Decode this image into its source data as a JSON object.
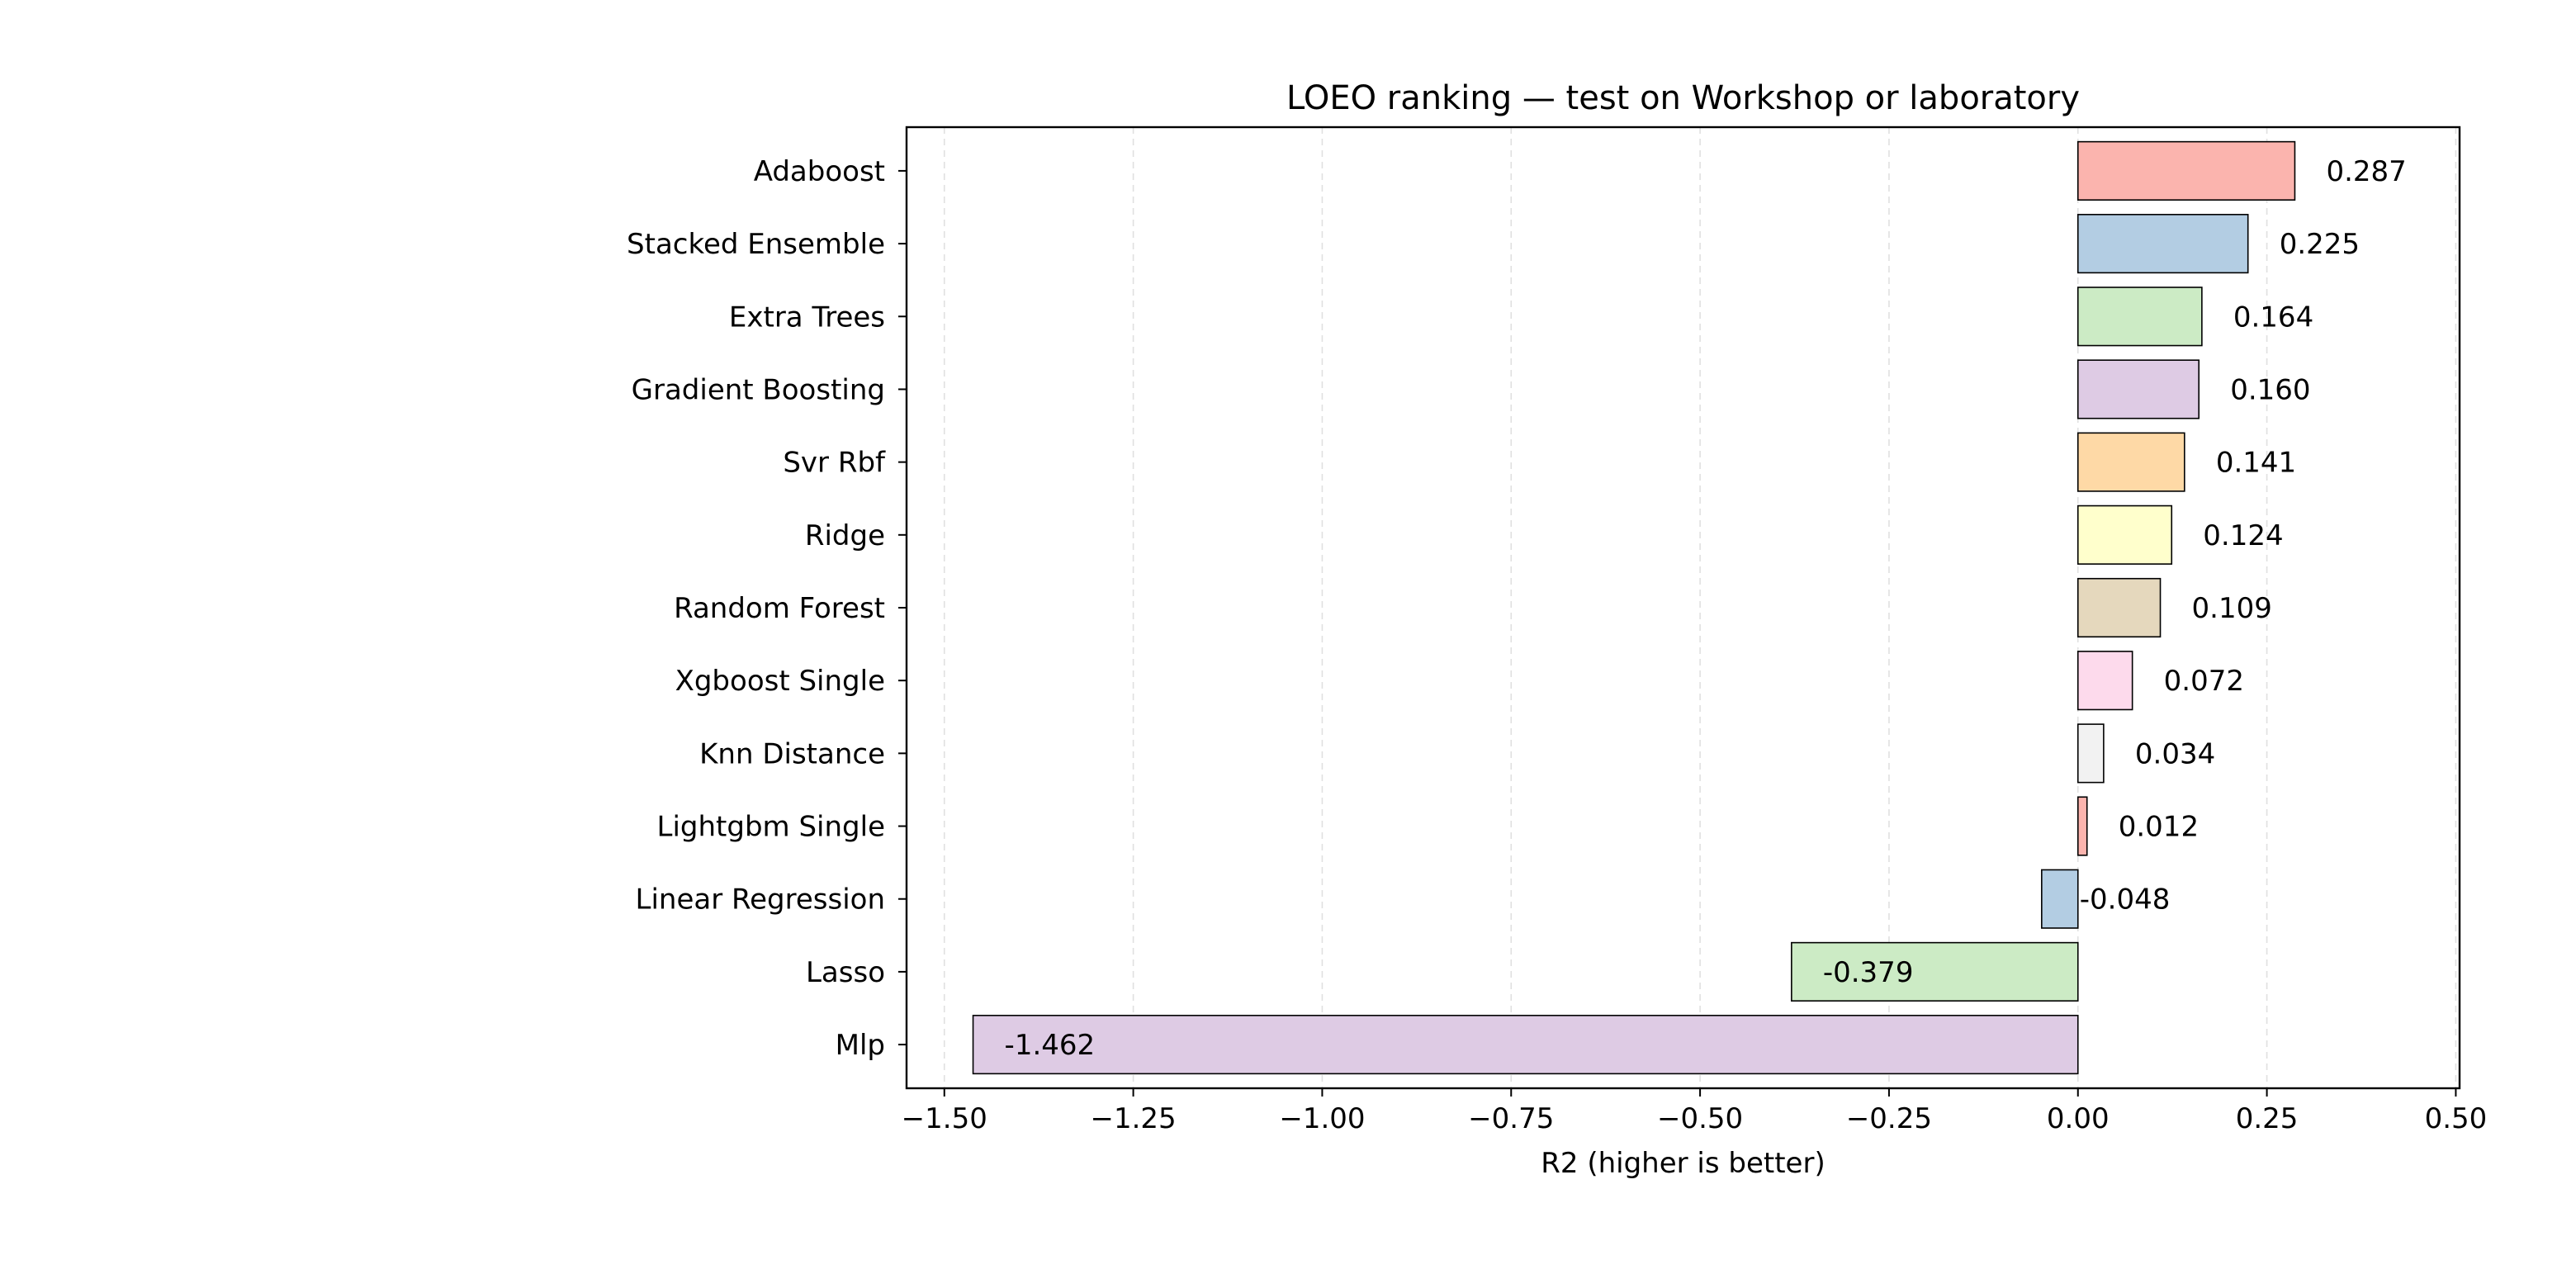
{
  "chart_data": {
    "type": "bar",
    "orientation": "horizontal",
    "title": "LOEO ranking — test on Workshop or laboratory",
    "xlabel": "R2 (higher is better)",
    "ylabel": "",
    "xlim": [
      -1.55,
      0.505
    ],
    "xticks": [
      -1.5,
      -1.25,
      -1.0,
      -0.75,
      -0.5,
      -0.25,
      0.0,
      0.25,
      0.5
    ],
    "xtick_labels": [
      "−1.50",
      "−1.25",
      "−1.00",
      "−0.75",
      "−0.50",
      "−0.25",
      "0.00",
      "0.25",
      "0.50"
    ],
    "grid": {
      "x": true,
      "y": false,
      "style": "dashed"
    },
    "legend": "none",
    "categories": [
      "Adaboost",
      "Stacked Ensemble",
      "Extra Trees",
      "Gradient Boosting",
      "Svr Rbf",
      "Ridge",
      "Random Forest",
      "Xgboost Single",
      "Knn Distance",
      "Lightgbm Single",
      "Linear Regression",
      "Lasso",
      "Mlp"
    ],
    "values": [
      0.287,
      0.225,
      0.164,
      0.16,
      0.141,
      0.124,
      0.109,
      0.072,
      0.034,
      0.012,
      -0.048,
      -0.379,
      -1.462
    ],
    "value_labels": [
      "0.287",
      "0.225",
      "0.164",
      "0.160",
      "0.141",
      "0.124",
      "0.109",
      "0.072",
      "0.034",
      "0.012",
      "-0.048",
      "-0.379",
      "-1.462"
    ],
    "colors": [
      "#fbb4ae",
      "#b3cde3",
      "#ccebc5",
      "#decbe4",
      "#fed9a6",
      "#ffffcc",
      "#e5d8bd",
      "#fddaec",
      "#f2f2f2",
      "#fbb4ae",
      "#b3cde3",
      "#ccebc5",
      "#decbe4"
    ]
  }
}
